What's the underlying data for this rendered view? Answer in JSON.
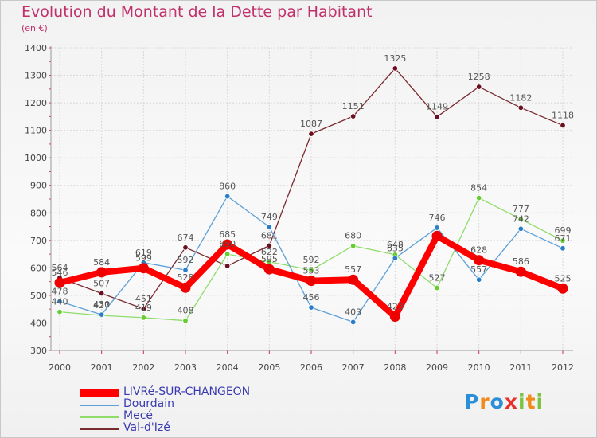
{
  "header": {
    "title": "Evolution du Montant de la Dette par Habitant",
    "subtitle": "(en €)"
  },
  "logo": {
    "text": "Proxiti",
    "letters": [
      "P",
      "r",
      "o",
      "x",
      "i",
      "t",
      "i"
    ],
    "colors": [
      "#2a8fd8",
      "#f08a1c",
      "#2a8fd8",
      "#e8302a",
      "#7cc242",
      "#f08a1c",
      "#7cc242"
    ]
  },
  "chart_data": {
    "type": "line",
    "title": "Evolution du Montant de la Dette par Habitant",
    "subtitle": "(en €)",
    "x": [
      "2000",
      "2001",
      "2002",
      "2003",
      "2004",
      "2005",
      "2006",
      "2007",
      "2008",
      "2009",
      "2010",
      "2011",
      "2012"
    ],
    "ylim": [
      300,
      1400
    ],
    "yticks": [
      300,
      400,
      500,
      600,
      700,
      800,
      900,
      1000,
      1100,
      1200,
      1300,
      1400
    ],
    "grid": true,
    "legend_position": "bottom-left",
    "series": [
      {
        "name": "Val-d'Izé",
        "color": "#7a2a30",
        "marker": "#6a1020",
        "values": [
          564,
          507,
          451,
          674,
          607,
          681,
          1087,
          1151,
          1325,
          1149,
          1258,
          1182,
          1118
        ],
        "labels": [
          "564",
          "507",
          "451",
          "674",
          "",
          "681",
          "1087",
          "1151",
          "1325",
          "1149",
          "1258",
          "1182",
          "1118"
        ]
      },
      {
        "name": "Mecé",
        "color": "#8fdc6a",
        "marker": "#66cc33",
        "values": [
          440,
          427,
          419,
          408,
          650,
          622,
          592,
          680,
          648,
          527,
          854,
          777,
          699
        ],
        "labels": [
          "440",
          "427",
          "419",
          "408",
          "650",
          "622",
          "592",
          "680",
          "648",
          "527",
          "854",
          "777",
          "699"
        ]
      },
      {
        "name": "Dourdain",
        "color": "#5ea0d8",
        "marker": "#2a7fc8",
        "values": [
          478,
          430,
          619,
          592,
          860,
          749,
          456,
          403,
          635,
          746,
          557,
          742,
          671
        ],
        "labels": [
          "478",
          "430",
          "619",
          "592",
          "860",
          "749",
          "456",
          "403",
          "635",
          "746",
          "557",
          "742",
          "671"
        ]
      },
      {
        "name": "LIVRé-SUR-CHANGEON",
        "color": "#ff0000",
        "marker": "#ee0000",
        "values": [
          546,
          584,
          599,
          528,
          685,
          595,
          553,
          557,
          423,
          716,
          628,
          586,
          525
        ],
        "labels": [
          "546",
          "584",
          "599",
          "528",
          "685",
          "595",
          "553",
          "557",
          "423",
          "",
          "628",
          "586",
          "525"
        ]
      }
    ],
    "legend": [
      "LIVRé-SUR-CHANGEON",
      "Dourdain",
      "Mecé",
      "Val-d'Izé"
    ]
  }
}
